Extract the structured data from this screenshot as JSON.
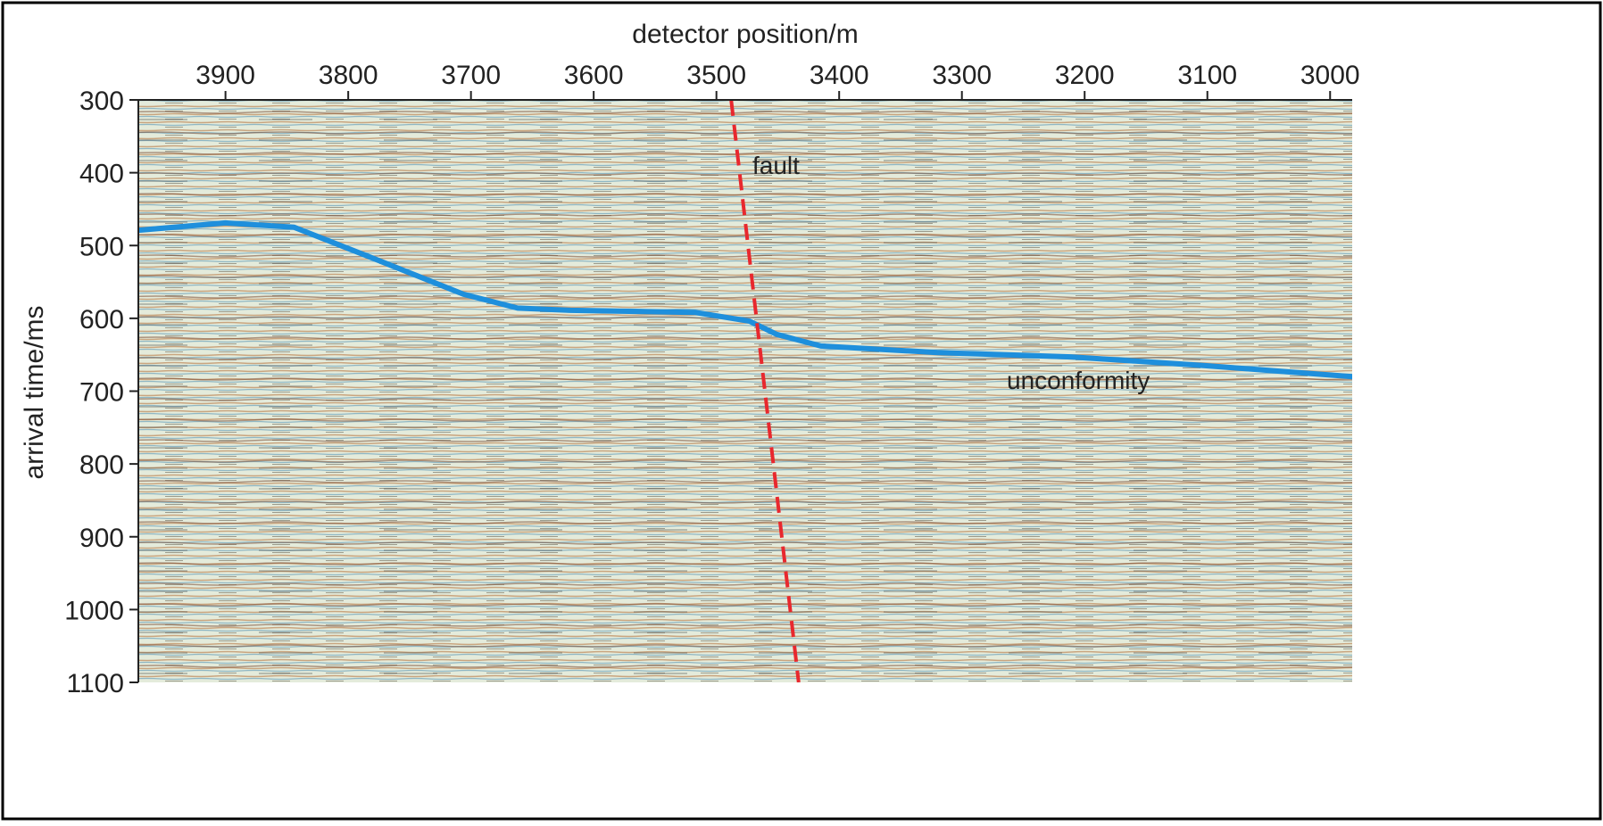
{
  "chart_data": {
    "type": "line",
    "x_label": "detector position/m",
    "y_label": "arrival time/ms",
    "xlim": [
      3971,
      2982
    ],
    "ylim": [
      300,
      1100
    ],
    "xticks": [
      3900,
      3800,
      3700,
      3600,
      3500,
      3400,
      3300,
      3200,
      3100,
      3000
    ],
    "yticks": [
      300,
      400,
      500,
      600,
      700,
      800,
      900,
      1000,
      1100
    ],
    "y_inverted": true,
    "x_axis_position": "top",
    "series": [
      {
        "name": "unconformity",
        "color": "#1e8fdc",
        "dashed": false,
        "x": [
          3971,
          3900,
          3844,
          3779,
          3706,
          3662,
          3619,
          3517,
          3473,
          3451,
          3415,
          3320,
          3211,
          3102,
          2982
        ],
        "values": [
          479,
          469,
          475,
          518,
          567,
          586,
          589,
          592,
          604,
          622,
          638,
          647,
          653,
          665,
          680
        ]
      },
      {
        "name": "fault",
        "color": "#e8282e",
        "dashed": true,
        "x": [
          3488,
          3433
        ],
        "values": [
          300,
          1100
        ]
      }
    ]
  }
}
